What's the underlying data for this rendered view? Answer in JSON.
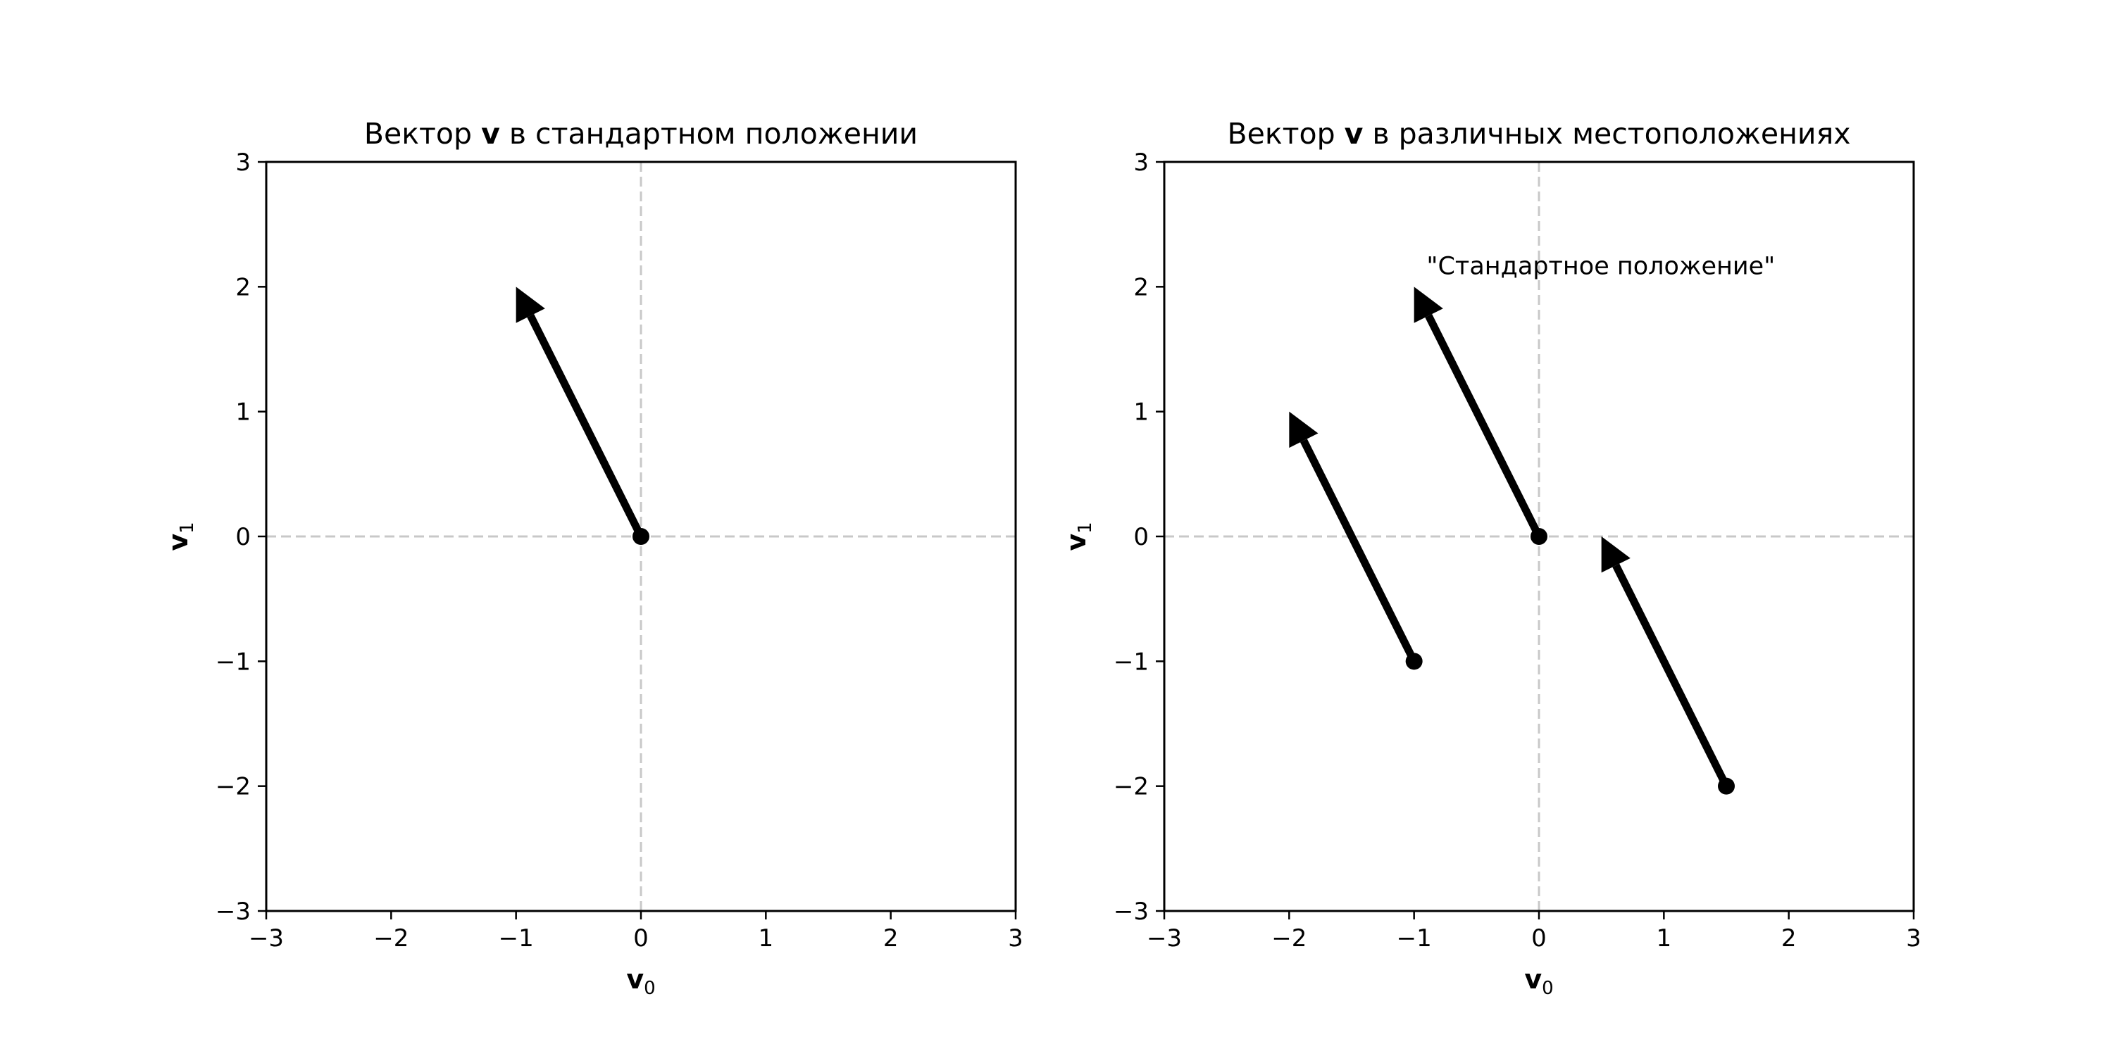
{
  "chart_data": [
    {
      "type": "vector",
      "title_parts": [
        "Вектор ",
        "v",
        " в стандартном положении"
      ],
      "xlabel": "v",
      "xlabel_sub": "0",
      "ylabel": "v",
      "ylabel_sub": "1",
      "xlim": [
        -3,
        3
      ],
      "ylim": [
        -3,
        3
      ],
      "xticks": [
        -3,
        -2,
        -1,
        0,
        1,
        2,
        3
      ],
      "yticks": [
        -3,
        -2,
        -1,
        0,
        1,
        2,
        3
      ],
      "xtick_labels": [
        "−3",
        "−2",
        "−1",
        "0",
        "1",
        "2",
        "3"
      ],
      "ytick_labels": [
        "−3",
        "−2",
        "−1",
        "0",
        "1",
        "2",
        "3"
      ],
      "reference_lines": {
        "x": 0,
        "y": 0,
        "style": "dashed",
        "color": "#c8c8c8"
      },
      "vector": [
        -1,
        2
      ],
      "starts": [
        [
          0,
          0
        ]
      ],
      "annotations": []
    },
    {
      "type": "vector",
      "title_parts": [
        "Вектор ",
        "v",
        " в различных местоположениях"
      ],
      "xlabel": "v",
      "xlabel_sub": "0",
      "ylabel": "v",
      "ylabel_sub": "1",
      "xlim": [
        -3,
        3
      ],
      "ylim": [
        -3,
        3
      ],
      "xticks": [
        -3,
        -2,
        -1,
        0,
        1,
        2,
        3
      ],
      "yticks": [
        -3,
        -2,
        -1,
        0,
        1,
        2,
        3
      ],
      "xtick_labels": [
        "−3",
        "−2",
        "−1",
        "0",
        "1",
        "2",
        "3"
      ],
      "ytick_labels": [
        "−3",
        "−2",
        "−1",
        "0",
        "1",
        "2",
        "3"
      ],
      "reference_lines": {
        "x": 0,
        "y": 0,
        "style": "dashed",
        "color": "#c8c8c8"
      },
      "vector": [
        -1,
        2
      ],
      "starts": [
        [
          -1,
          -1
        ],
        [
          0,
          0
        ],
        [
          1.5,
          -2
        ]
      ],
      "annotations": [
        {
          "text": "\"Стандартное положение\"",
          "x": -0.9,
          "y": 2.1
        }
      ]
    }
  ],
  "colors": {
    "vector": "#000000",
    "axes": "#000000",
    "reference": "#c8c8c8"
  }
}
